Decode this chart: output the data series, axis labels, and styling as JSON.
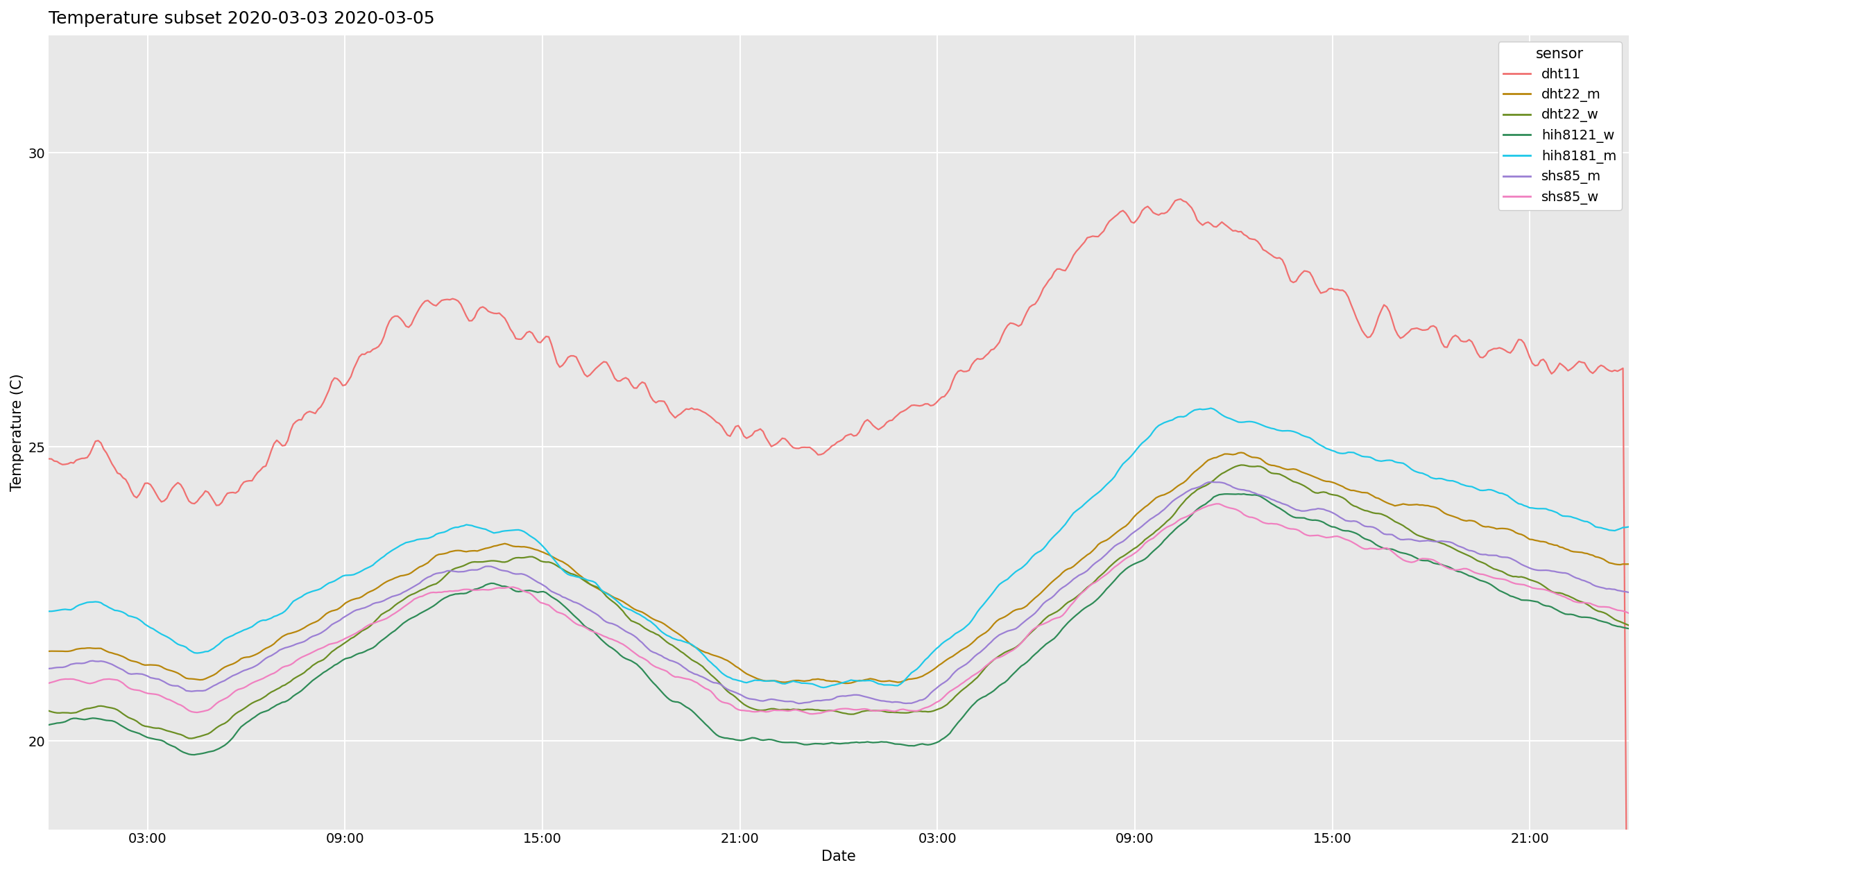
{
  "title": "Temperature subset 2020-03-03 2020-03-05",
  "xlabel": "Date",
  "ylabel": "Temperature (C)",
  "plot_bg_color": "#e8e8e8",
  "grid_color": "#ffffff",
  "ylim": [
    18.5,
    32.0
  ],
  "yticks": [
    20,
    25,
    30
  ],
  "xtick_labels": [
    "03:00",
    "09:00",
    "15:00",
    "21:00",
    "03:00",
    "09:00",
    "15:00",
    "21:00"
  ],
  "sensors": {
    "dht11": {
      "color": "#F07070"
    },
    "dht22_m": {
      "color": "#B8860B"
    },
    "dht22_w": {
      "color": "#6B8E23"
    },
    "hih8121_w": {
      "color": "#2E8B57"
    },
    "hih8181_m": {
      "color": "#1EC8E8"
    },
    "shs85_m": {
      "color": "#9B7FD4"
    },
    "shs85_w": {
      "color": "#F080C0"
    }
  },
  "title_fontsize": 18,
  "axis_label_fontsize": 15,
  "tick_fontsize": 14,
  "legend_fontsize": 14,
  "line_width": 1.6
}
